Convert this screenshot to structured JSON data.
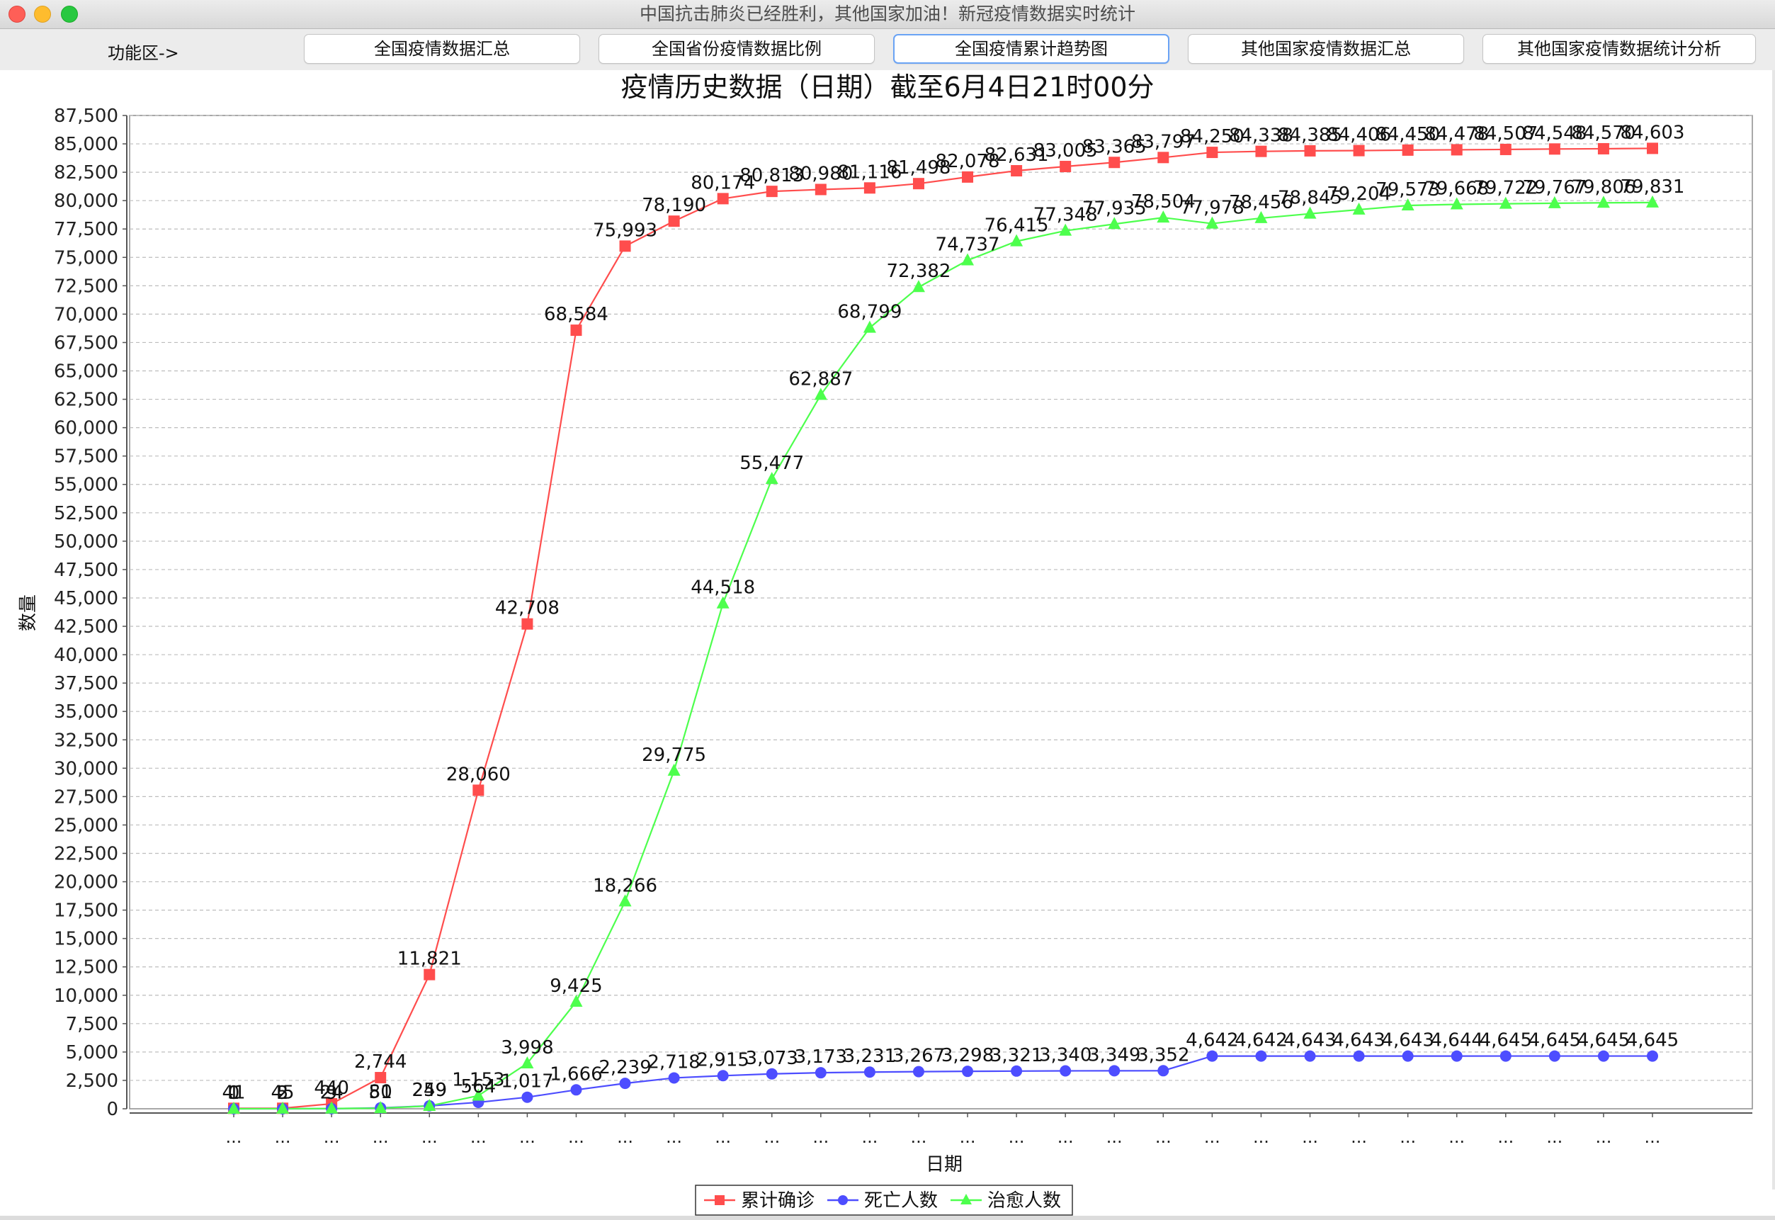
{
  "window": {
    "title": "中国抗击肺炎已经胜利，其他国家加油！新冠疫情数据实时统计"
  },
  "toolbar": {
    "label": "功能区->",
    "buttons": [
      {
        "label": "全国疫情数据汇总",
        "active": false
      },
      {
        "label": "全国省份疫情数据比例",
        "active": false
      },
      {
        "label": "全国疫情累计趋势图",
        "active": true
      },
      {
        "label": "其他国家疫情数据汇总",
        "active": false
      },
      {
        "label": "其他国家疫情数据统计分析",
        "active": false
      }
    ]
  },
  "chart_data": {
    "type": "line",
    "title": "疫情历史数据（日期）截至6月4日21时00分",
    "xlabel": "日期",
    "ylabel": "数量",
    "ylim": [
      0,
      87500
    ],
    "ytick_step": 2500,
    "grid": true,
    "legend_position": "bottom",
    "categories": [
      "...",
      "...",
      "...",
      "...",
      "...",
      "...",
      "...",
      "...",
      "...",
      "...",
      "...",
      "...",
      "...",
      "...",
      "...",
      "...",
      "...",
      "...",
      "...",
      "...",
      "...",
      "...",
      "...",
      "...",
      "...",
      "...",
      "...",
      "...",
      "...",
      "..."
    ],
    "series": [
      {
        "name": "累计确诊",
        "color": "#ff4d4d",
        "marker": "square",
        "values": [
          41,
          45,
          440,
          2744,
          11821,
          28060,
          42708,
          68584,
          75993,
          78190,
          80174,
          80813,
          80980,
          81116,
          81498,
          82078,
          82631,
          83005,
          83365,
          83797,
          84250,
          84338,
          84385,
          84406,
          84450,
          84478,
          84507,
          84548,
          84570,
          84603
        ]
      },
      {
        "name": "死亡人数",
        "color": "#4d4dff",
        "marker": "circle",
        "values": [
          1,
          2,
          9,
          80,
          259,
          564,
          1017,
          1666,
          2239,
          2718,
          2915,
          3073,
          3173,
          3231,
          3267,
          3298,
          3321,
          3340,
          3349,
          3352,
          4642,
          4642,
          4643,
          4643,
          4643,
          4644,
          4645,
          4645,
          4645,
          4645
        ]
      },
      {
        "name": "治愈人数",
        "color": "#4dff4d",
        "marker": "triangle",
        "values": [
          0,
          5,
          24,
          51,
          249,
          1153,
          3998,
          9425,
          18266,
          29775,
          44518,
          55477,
          62887,
          68799,
          72382,
          74737,
          76415,
          77348,
          77935,
          78504,
          77978,
          78456,
          78845,
          79204,
          79573,
          79668,
          79722,
          79767,
          79806,
          79831
        ]
      }
    ]
  }
}
